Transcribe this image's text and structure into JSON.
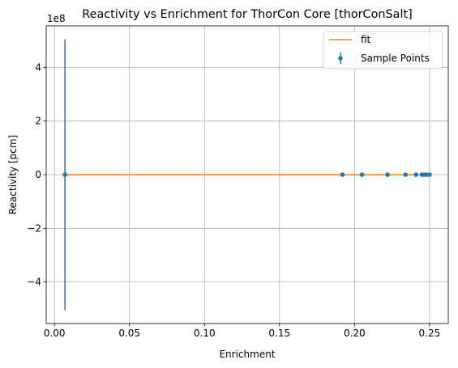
{
  "chart_data": {
    "type": "scatter",
    "title": "Reactivity vs Enrichment for ThorCon Core [thorConSalt]",
    "xlabel": "Enrichment",
    "ylabel": "Reactivity [pcm]",
    "y_offset_label": "1e8",
    "xlim": [
      -0.0055,
      0.2625
    ],
    "ylim": [
      -5.55,
      5.55
    ],
    "y_scale_note": "values in units of 1e8 pcm",
    "x_ticks": [
      0.0,
      0.05,
      0.1,
      0.15,
      0.2,
      0.25
    ],
    "x_tick_labels": [
      "0.00",
      "0.05",
      "0.10",
      "0.15",
      "0.20",
      "0.25"
    ],
    "y_ticks": [
      -4,
      -2,
      0,
      2,
      4
    ],
    "y_tick_labels": [
      "−4",
      "−2",
      "0",
      "2",
      "4"
    ],
    "grid": true,
    "legend_position": "top-right",
    "series": [
      {
        "name": "fit",
        "kind": "line",
        "color": "#ff7f0e",
        "x": [
          0.007,
          0.25
        ],
        "y": [
          0,
          0
        ]
      },
      {
        "name": "Sample Points",
        "kind": "errorbar",
        "color": "#1f77b4",
        "x": [
          0.007,
          0.192,
          0.205,
          0.222,
          0.234,
          0.241,
          0.245,
          0.247,
          0.248,
          0.25
        ],
        "y": [
          0,
          0,
          0,
          0,
          0,
          0,
          0,
          0,
          0,
          0
        ],
        "yerr": [
          5.05,
          0,
          0,
          0,
          0,
          0,
          0,
          0,
          0,
          0
        ]
      }
    ]
  }
}
